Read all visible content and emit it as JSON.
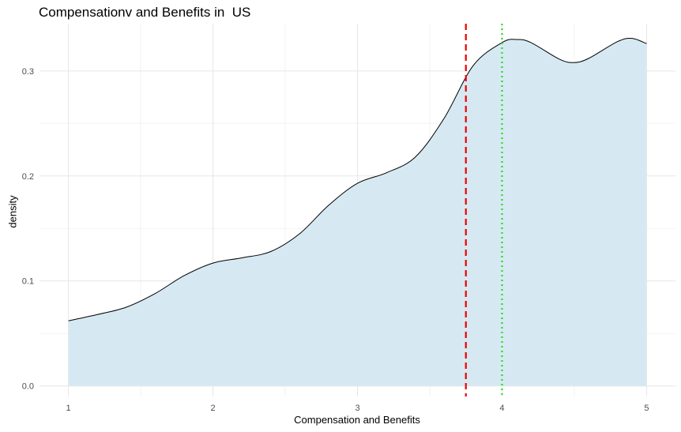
{
  "chart_data": {
    "type": "area",
    "title": "Compensationv and Benefits in  US",
    "xlabel": "Compensation and Benefits",
    "ylabel": "density",
    "xlim": [
      0.8,
      5.2
    ],
    "ylim": [
      -0.01,
      0.345
    ],
    "x_ticks": [
      1,
      2,
      3,
      4,
      5
    ],
    "x_tick_labels": [
      "1",
      "2",
      "3",
      "4",
      "5"
    ],
    "y_ticks": [
      0.0,
      0.1,
      0.2,
      0.3
    ],
    "y_tick_labels": [
      "0.0",
      "0.1",
      "0.2",
      "0.3"
    ],
    "grid": true,
    "fill_color": "#d6e9f2",
    "line_color": "#000000",
    "series": [
      {
        "x": [
          1.0,
          1.2,
          1.4,
          1.6,
          1.8,
          2.0,
          2.2,
          2.4,
          2.6,
          2.8,
          3.0,
          3.2,
          3.4,
          3.6,
          3.8,
          4.0,
          4.1,
          4.2,
          4.4,
          4.5,
          4.6,
          4.8,
          4.9,
          5.0
        ],
        "values": [
          0.062,
          0.068,
          0.075,
          0.088,
          0.105,
          0.117,
          0.122,
          0.128,
          0.145,
          0.172,
          0.193,
          0.203,
          0.218,
          0.255,
          0.305,
          0.327,
          0.33,
          0.327,
          0.311,
          0.308,
          0.312,
          0.328,
          0.331,
          0.326
        ]
      }
    ],
    "reference_lines": [
      {
        "x": 3.75,
        "color": "#ee0000",
        "style": "dashed"
      },
      {
        "x": 4.0,
        "color": "#22dd22",
        "style": "dotted"
      }
    ]
  }
}
